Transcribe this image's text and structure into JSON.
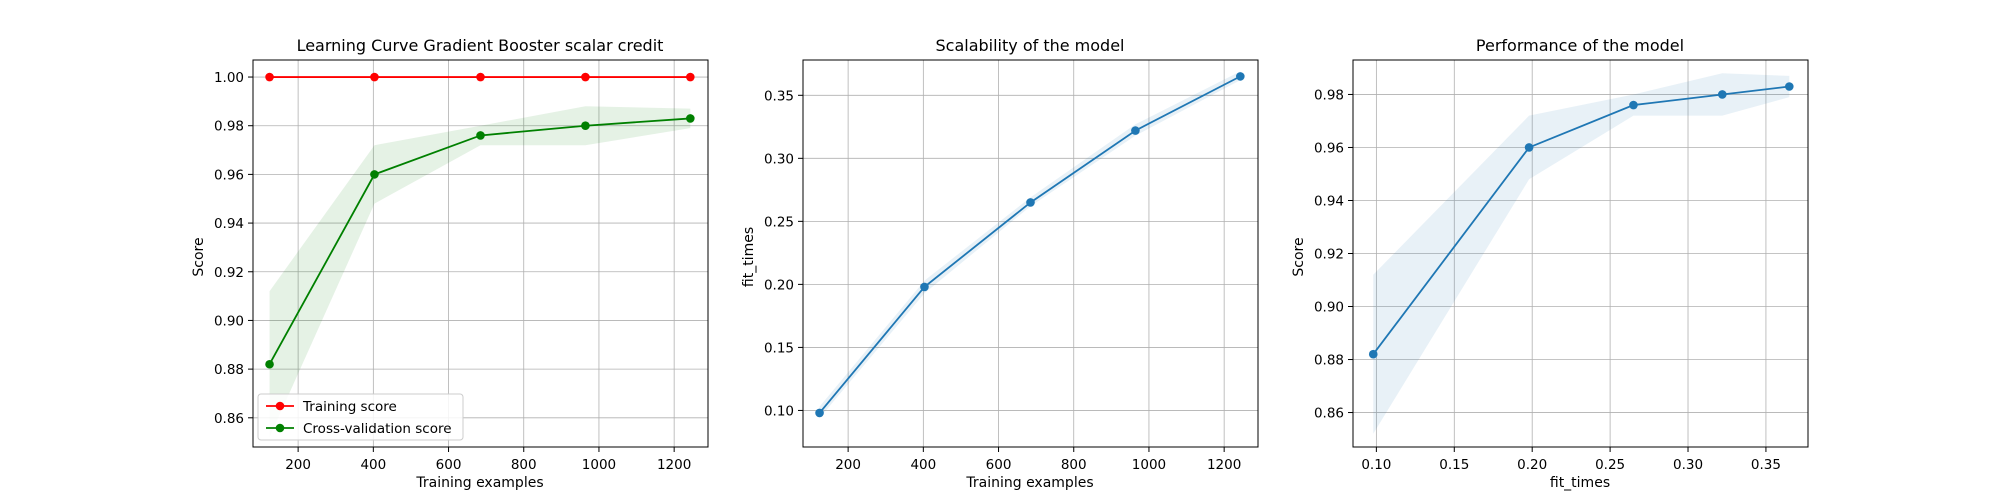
{
  "chart_data": [
    {
      "type": "line",
      "title": "Learning Curve Gradient Booster scalar credit",
      "xlabel": "Training examples",
      "ylabel": "Score",
      "xlim": [
        80,
        1290
      ],
      "ylim": [
        0.848,
        1.007
      ],
      "xticks": [
        200,
        400,
        600,
        800,
        1000,
        1200
      ],
      "yticks": [
        0.86,
        0.88,
        0.9,
        0.92,
        0.94,
        0.96,
        0.98,
        1.0
      ],
      "xtick_labels": [
        "200",
        "400",
        "600",
        "800",
        "1000",
        "1200"
      ],
      "ytick_labels": [
        "0.86",
        "0.88",
        "0.90",
        "0.92",
        "0.94",
        "0.96",
        "0.98",
        "1.00"
      ],
      "grid": true,
      "legend": "lower-left",
      "series": [
        {
          "name": "Training score",
          "color": "#ff0000",
          "x": [
            124,
            403,
            685,
            964,
            1243
          ],
          "y": [
            1.0,
            1.0,
            1.0,
            1.0,
            1.0
          ],
          "lower": [
            1.0,
            1.0,
            1.0,
            1.0,
            1.0
          ],
          "upper": [
            1.0,
            1.0,
            1.0,
            1.0,
            1.0
          ]
        },
        {
          "name": "Cross-validation score",
          "color": "#008000",
          "x": [
            124,
            403,
            685,
            964,
            1243
          ],
          "y": [
            0.882,
            0.96,
            0.976,
            0.98,
            0.983
          ],
          "lower": [
            0.852,
            0.948,
            0.972,
            0.972,
            0.979
          ],
          "upper": [
            0.912,
            0.972,
            0.98,
            0.988,
            0.987
          ]
        }
      ]
    },
    {
      "type": "line",
      "title": "Scalability of the model",
      "xlabel": "Training examples",
      "ylabel": "fit_times",
      "xlim": [
        80,
        1290
      ],
      "ylim": [
        0.071,
        0.378
      ],
      "xticks": [
        200,
        400,
        600,
        800,
        1000,
        1200
      ],
      "yticks": [
        0.1,
        0.15,
        0.2,
        0.25,
        0.3,
        0.35
      ],
      "xtick_labels": [
        "200",
        "400",
        "600",
        "800",
        "1000",
        "1200"
      ],
      "ytick_labels": [
        "0.10",
        "0.15",
        "0.20",
        "0.25",
        "0.30",
        "0.35"
      ],
      "grid": true,
      "series": [
        {
          "color": "#1f77b4",
          "x": [
            124,
            403,
            685,
            964,
            1243
          ],
          "y": [
            0.098,
            0.198,
            0.265,
            0.322,
            0.365
          ],
          "lower": [
            0.094,
            0.193,
            0.262,
            0.318,
            0.362
          ],
          "upper": [
            0.103,
            0.203,
            0.269,
            0.327,
            0.369
          ]
        }
      ]
    },
    {
      "type": "line",
      "title": "Performance of the model",
      "xlabel": "fit_times",
      "ylabel": "Score",
      "xlim": [
        0.085,
        0.377
      ],
      "ylim": [
        0.847,
        0.993
      ],
      "xticks": [
        0.1,
        0.15,
        0.2,
        0.25,
        0.3,
        0.35
      ],
      "yticks": [
        0.86,
        0.88,
        0.9,
        0.92,
        0.94,
        0.96,
        0.98
      ],
      "xtick_labels": [
        "0.10",
        "0.15",
        "0.20",
        "0.25",
        "0.30",
        "0.35"
      ],
      "ytick_labels": [
        "0.86",
        "0.88",
        "0.90",
        "0.92",
        "0.94",
        "0.96",
        "0.98"
      ],
      "grid": true,
      "series": [
        {
          "color": "#1f77b4",
          "x": [
            0.098,
            0.198,
            0.265,
            0.322,
            0.365
          ],
          "y": [
            0.882,
            0.96,
            0.976,
            0.98,
            0.983
          ],
          "lower": [
            0.852,
            0.948,
            0.972,
            0.972,
            0.979
          ],
          "upper": [
            0.912,
            0.972,
            0.98,
            0.988,
            0.987
          ]
        }
      ]
    }
  ]
}
